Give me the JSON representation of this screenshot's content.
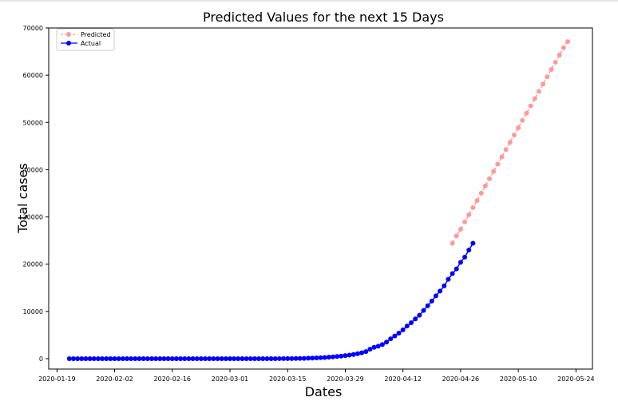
{
  "chart_data": {
    "type": "line",
    "title": "Predicted Values for the next 15 Days",
    "xlabel": "Dates",
    "ylabel": "Total cases",
    "x_ticks": [
      "2020-01-19",
      "2020-02-02",
      "2020-02-16",
      "2020-03-01",
      "2020-03-15",
      "2020-03-29",
      "2020-04-12",
      "2020-04-26",
      "2020-05-10",
      "2020-05-24"
    ],
    "y_ticks": [
      0,
      10000,
      20000,
      30000,
      40000,
      50000,
      60000,
      70000
    ],
    "xlim": [
      "2020-01-17",
      "2020-05-28"
    ],
    "ylim": [
      -2200,
      70000
    ],
    "grid": false,
    "legend_position": "top-left",
    "series": [
      {
        "name": "Predicted",
        "color": "#ff9999",
        "style": "dashed-markers",
        "x_start": "2020-04-24",
        "x_step_days": 1,
        "values": [
          24427,
          26000,
          27400,
          28950,
          30450,
          31980,
          33450,
          35020,
          36560,
          38100,
          39640,
          41180,
          42720,
          44260,
          45800,
          47340,
          48880,
          50420,
          51960,
          53500,
          55040,
          56580,
          58120,
          59660,
          61200,
          62740,
          64280,
          65820,
          67100
        ]
      },
      {
        "name": "Actual",
        "color": "#0000ff",
        "style": "solid-markers",
        "x_start": "2020-01-22",
        "x_step_days": 1,
        "values": [
          0,
          0,
          0,
          0,
          0,
          0,
          0,
          0,
          0,
          0,
          0,
          0,
          0,
          0,
          0,
          0,
          0,
          0,
          0,
          0,
          0,
          0,
          0,
          0,
          0,
          0,
          0,
          0,
          0,
          0,
          0,
          0,
          0,
          0,
          0,
          0,
          0,
          0,
          0,
          0,
          0,
          0,
          0,
          0,
          0,
          0,
          0,
          0,
          0,
          2,
          5,
          9,
          13,
          18,
          25,
          35,
          50,
          70,
          95,
          125,
          160,
          200,
          250,
          310,
          380,
          460,
          550,
          650,
          760,
          890,
          1050,
          1250,
          1500,
          2000,
          2400,
          2650,
          3000,
          3500,
          4200,
          4800,
          5400,
          6100,
          6900,
          7600,
          8400,
          9200,
          10200,
          11200,
          12200,
          13300,
          14300,
          15400,
          16800,
          18000,
          19000,
          20400,
          21500,
          23000,
          24427
        ]
      }
    ]
  }
}
